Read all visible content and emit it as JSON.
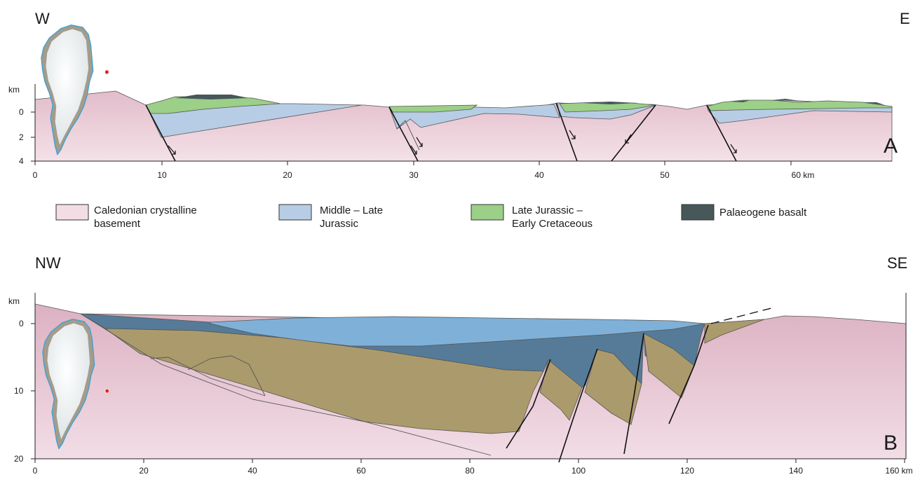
{
  "colors": {
    "basement": "#e6c3cf",
    "basement_light": "#f3dde5",
    "mid_jurassic": "#b7cde5",
    "late_jurassic": "#9ccf87",
    "basalt": "#47575a",
    "b_blue_light": "#7fb0d8",
    "b_blue_dark": "#557b98",
    "b_olive": "#ab9b6c",
    "greenland_ice": "#f2f4f4",
    "greenland_coast": "#3aa2d8",
    "greenland_land": "#a49c8a",
    "location_dot": "#e1261c"
  },
  "section_a": {
    "left_label": "W",
    "right_label": "E",
    "panel_label": "A",
    "y_unit": "km",
    "y_ticks": [
      "0",
      "2",
      "4"
    ],
    "x_ticks": [
      "0",
      "10",
      "20",
      "30",
      "40",
      "50",
      "60 km"
    ]
  },
  "legend": [
    {
      "label_lines": [
        "Caledonian crystalline",
        "basement"
      ],
      "color_key": "basement_light"
    },
    {
      "label_lines": [
        "Middle – Late",
        "Jurassic"
      ],
      "color_key": "mid_jurassic"
    },
    {
      "label_lines": [
        "Late Jurassic –",
        "Early Cretaceous"
      ],
      "color_key": "late_jurassic"
    },
    {
      "label_lines": [
        "Palaeogene basalt"
      ],
      "color_key": "basalt"
    }
  ],
  "section_b": {
    "left_label": "NW",
    "right_label": "SE",
    "panel_label": "B",
    "y_unit": "km",
    "y_ticks": [
      "0",
      "10",
      "20"
    ],
    "x_ticks": [
      "0",
      "20",
      "40",
      "60",
      "80",
      "100",
      "120",
      "140",
      "160 km"
    ]
  }
}
